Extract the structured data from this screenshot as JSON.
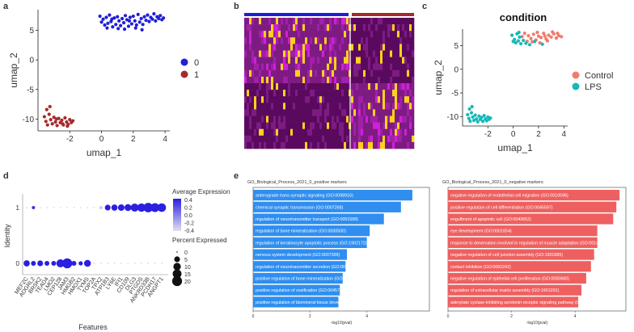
{
  "panels": {
    "a": "a",
    "b": "b",
    "c": "c",
    "d": "d",
    "e": "e"
  },
  "chart_data": [
    {
      "id": "a",
      "type": "scatter",
      "xlabel": "umap_1",
      "ylabel": "umap_2",
      "xlim": [
        -4,
        4.3
      ],
      "ylim": [
        -12,
        8.5
      ],
      "xticks": [
        -2,
        0,
        2,
        4
      ],
      "yticks": [
        -10,
        -5,
        0,
        5
      ],
      "legend": [
        "0",
        "1"
      ],
      "colors": [
        "#1f1fd6",
        "#a62a2a"
      ],
      "series": [
        {
          "name": "0",
          "points": [
            [
              -0.1,
              7.4
            ],
            [
              0.1,
              6.9
            ],
            [
              0.2,
              5.9
            ],
            [
              0.3,
              7.2
            ],
            [
              0.4,
              6.2
            ],
            [
              0.5,
              7.6
            ],
            [
              0.6,
              6.5
            ],
            [
              0.7,
              5.6
            ],
            [
              0.8,
              7.1
            ],
            [
              0.9,
              6.0
            ],
            [
              1.0,
              7.3
            ],
            [
              1.1,
              6.6
            ],
            [
              1.2,
              5.8
            ],
            [
              1.3,
              7.0
            ],
            [
              1.4,
              6.3
            ],
            [
              1.5,
              7.5
            ],
            [
              1.6,
              6.8
            ],
            [
              1.7,
              5.7
            ],
            [
              1.8,
              7.2
            ],
            [
              1.9,
              6.1
            ],
            [
              2.0,
              7.4
            ],
            [
              2.1,
              6.6
            ],
            [
              2.2,
              5.9
            ],
            [
              2.3,
              7.7
            ],
            [
              2.4,
              6.4
            ],
            [
              2.5,
              7.0
            ],
            [
              2.6,
              6.0
            ],
            [
              2.7,
              7.3
            ],
            [
              2.8,
              6.7
            ],
            [
              2.9,
              7.6
            ],
            [
              3.0,
              6.5
            ],
            [
              3.1,
              7.2
            ],
            [
              3.2,
              6.9
            ],
            [
              3.3,
              7.8
            ],
            [
              3.4,
              6.6
            ],
            [
              3.5,
              7.3
            ],
            [
              3.6,
              7.0
            ],
            [
              3.7,
              7.5
            ],
            [
              3.8,
              6.8
            ],
            [
              3.9,
              7.1
            ],
            [
              0.0,
              6.4
            ],
            [
              0.35,
              5.4
            ],
            [
              1.05,
              5.3
            ],
            [
              1.45,
              5.2
            ],
            [
              2.15,
              5.4
            ],
            [
              2.55,
              5.1
            ],
            [
              0.65,
              6.9
            ],
            [
              1.75,
              6.6
            ]
          ]
        },
        {
          "name": "1",
          "points": [
            [
              -3.6,
              -9.6
            ],
            [
              -3.5,
              -10.4
            ],
            [
              -3.4,
              -11.0
            ],
            [
              -3.3,
              -9.2
            ],
            [
              -3.2,
              -10.1
            ],
            [
              -3.1,
              -10.8
            ],
            [
              -3.0,
              -9.7
            ],
            [
              -2.9,
              -10.5
            ],
            [
              -2.8,
              -11.1
            ],
            [
              -2.7,
              -9.9
            ],
            [
              -2.6,
              -10.6
            ],
            [
              -2.5,
              -10.2
            ],
            [
              -2.4,
              -11.0
            ],
            [
              -2.3,
              -9.8
            ],
            [
              -2.2,
              -10.5
            ],
            [
              -2.1,
              -10.9
            ],
            [
              -2.0,
              -10.1
            ],
            [
              -1.9,
              -10.6
            ],
            [
              -1.8,
              -10.3
            ],
            [
              -3.45,
              -8.4
            ],
            [
              -3.25,
              -7.9
            ],
            [
              -2.85,
              -10.0
            ],
            [
              -2.45,
              -10.8
            ],
            [
              -2.15,
              -11.2
            ]
          ]
        }
      ]
    },
    {
      "id": "b",
      "type": "heatmap",
      "groups": [
        {
          "name": "0",
          "color": "#1f1fd6"
        },
        {
          "name": "1",
          "color": "#a62a2a"
        }
      ],
      "colors": [
        "#5a0a5e",
        "#7e1b83",
        "#a020a8",
        "#d11fd9",
        "#ffd21a"
      ]
    },
    {
      "id": "c",
      "type": "scatter",
      "title": "condition",
      "xlabel": "umap_1",
      "ylabel": "umap_2",
      "xlim": [
        -4,
        4.3
      ],
      "ylim": [
        -12,
        8.5
      ],
      "xticks": [
        -2,
        0,
        2,
        4
      ],
      "yticks": [
        -10,
        -5,
        0,
        5
      ],
      "legend": [
        "Control",
        "LPS"
      ],
      "colors": [
        "#f07c6c",
        "#17b8b8"
      ],
      "series": [
        {
          "name": "Control",
          "points": [
            [
              1.2,
              7.1
            ],
            [
              1.4,
              6.5
            ],
            [
              1.6,
              7.4
            ],
            [
              1.8,
              6.2
            ],
            [
              2.0,
              7.0
            ],
            [
              2.2,
              6.7
            ],
            [
              2.4,
              7.6
            ],
            [
              2.6,
              6.4
            ],
            [
              2.8,
              7.2
            ],
            [
              3.0,
              6.8
            ],
            [
              3.2,
              7.5
            ],
            [
              3.4,
              6.6
            ],
            [
              3.6,
              7.1
            ],
            [
              3.8,
              6.9
            ],
            [
              1.5,
              5.8
            ],
            [
              2.1,
              5.6
            ],
            [
              2.7,
              6.0
            ],
            [
              3.1,
              7.9
            ],
            [
              0.7,
              6.9
            ],
            [
              0.9,
              7.6
            ],
            [
              1.1,
              5.9
            ],
            [
              2.5,
              7.0
            ],
            [
              1.9,
              7.8
            ],
            [
              3.5,
              7.6
            ]
          ]
        },
        {
          "name": "LPS",
          "points": [
            [
              -0.1,
              7.2
            ],
            [
              0.1,
              6.3
            ],
            [
              0.2,
              5.6
            ],
            [
              0.3,
              7.5
            ],
            [
              0.4,
              6.0
            ],
            [
              0.5,
              6.8
            ],
            [
              0.6,
              5.4
            ],
            [
              0.8,
              6.1
            ],
            [
              1.0,
              5.5
            ],
            [
              1.3,
              5.2
            ],
            [
              1.7,
              5.9
            ],
            [
              2.3,
              5.3
            ],
            [
              0.0,
              5.9
            ],
            [
              0.45,
              7.8
            ],
            [
              -3.6,
              -9.6
            ],
            [
              -3.5,
              -10.4
            ],
            [
              -3.4,
              -11.0
            ],
            [
              -3.3,
              -9.2
            ],
            [
              -3.2,
              -10.1
            ],
            [
              -3.1,
              -10.8
            ],
            [
              -3.0,
              -9.7
            ],
            [
              -2.9,
              -10.5
            ],
            [
              -2.8,
              -11.1
            ],
            [
              -2.7,
              -9.9
            ],
            [
              -2.6,
              -10.6
            ],
            [
              -2.5,
              -10.2
            ],
            [
              -2.4,
              -11.0
            ],
            [
              -2.3,
              -9.8
            ],
            [
              -2.2,
              -10.5
            ],
            [
              -2.1,
              -10.9
            ],
            [
              -2.0,
              -10.1
            ],
            [
              -1.9,
              -10.6
            ],
            [
              -1.8,
              -10.3
            ],
            [
              -3.45,
              -8.4
            ],
            [
              -3.25,
              -7.9
            ]
          ]
        }
      ]
    },
    {
      "id": "d",
      "type": "scatter",
      "subtype": "dotplot",
      "xlabel": "Features",
      "ylabel": "Identity",
      "identities": [
        "0",
        "1"
      ],
      "features": [
        "MEF2C",
        "ADGRL2",
        "BRSK2",
        "TEAD4",
        "LMO2",
        "CEP128",
        "JAM3",
        "HMGB2",
        "HMOX1",
        "TYMS",
        "TOP2A",
        "TPX2",
        "ATP1B3",
        "LY6E",
        "IFI1",
        "CD109",
        "DLG3",
        "PTGDS",
        "ANKRD33B",
        "PCDH17",
        "ANGPT1"
      ],
      "expr_row1": [
        -0.4,
        0.4,
        -0.4,
        -0.4,
        -0.4,
        -0.4,
        -0.4,
        -0.4,
        -0.4,
        -0.4,
        -0.4,
        -0.3,
        0.5,
        0.5,
        0.5,
        0.5,
        0.5,
        0.5,
        0.5,
        0.5,
        0.5
      ],
      "pct_row1": [
        0.5,
        0.8,
        0.3,
        0.3,
        0.3,
        0.3,
        0.3,
        0.3,
        0.3,
        0.3,
        0.5,
        0.8,
        5,
        6,
        7,
        8,
        12,
        13,
        18,
        15,
        14
      ],
      "expr_row0": [
        0.5,
        0.5,
        0.5,
        0.5,
        0.5,
        0.5,
        0.5,
        0.5,
        0.5,
        0.5,
        -0.4,
        -0.4,
        -0.4,
        -0.4,
        -0.4,
        -0.4,
        -0.4,
        -0.4,
        -0.4,
        -0.4,
        -0.4
      ],
      "pct_row0": [
        6,
        3,
        5,
        3,
        3,
        12,
        20,
        3,
        2,
        8,
        0.3,
        0.3,
        0.3,
        0.3,
        0.3,
        0.3,
        0.3,
        0.3,
        0.3,
        0.3,
        0.3
      ],
      "legend_expr_title": "Average Expression",
      "legend_expr_ticks": [
        "0.4",
        "0.2",
        "0.0",
        "-0.2",
        "-0.4"
      ],
      "legend_pct_title": "Percent Expressed",
      "legend_pct_values": [
        "0",
        "5",
        "10",
        "15",
        "20"
      ],
      "colors": [
        "#e0e0f0",
        "#2b1fe0"
      ]
    },
    {
      "id": "e1",
      "type": "bar",
      "orientation": "horizontal",
      "title": "GO_Biological_Process_2021_0_positive markers",
      "xlabel": "-log10(pval)",
      "xticks": [
        "0",
        "2",
        "4"
      ],
      "xlim": [
        0,
        6.2
      ],
      "color": "#2f8ef0",
      "categories": [
        "anterograde trans-synaptic signaling (GO:0098916)",
        "chemical synaptic transmission (GO:0007268)",
        "regulation of neurotransmitter transport (GO:0051588)",
        "regulation of bone mineralization (GO:0030500)",
        "regulation of keratinocyte apoptotic process (GO:1902172)",
        "nervous system development (GO:0007399)",
        "regulation of neurotransmitter secretion (GO:0046928)",
        "positive regulation of bone mineralization (GO:0030501)",
        "positive regulation of ossification (GO:0045778)",
        "positive regulation of biomineral tissue development (GO:0070169)"
      ],
      "values": [
        5.6,
        5.2,
        4.6,
        4.1,
        4.0,
        3.3,
        3.25,
        3.15,
        3.05,
        3.0
      ]
    },
    {
      "id": "e2",
      "type": "bar",
      "orientation": "horizontal",
      "title": "GO_Biological_Process_2021_0_negative markers",
      "xlabel": "-log10(pval)",
      "xticks": [
        "0",
        "2",
        "4"
      ],
      "xlim": [
        0,
        5.6
      ],
      "color": "#ee6060",
      "categories": [
        "negative regulation of endothelial cell migration (GO:0010596)",
        "positive regulation of cell differentiation (GO:0045597)",
        "engulfment of apoptotic cell (GO:0043652)",
        "eye development (GO:0001654)",
        "response to denervation involved in regulation of muscle adaptation (GO:0014894)",
        "negative regulation of cell junction assembly (GO:1901889)",
        "contact inhibition (GO:0060242)",
        "negative regulation of epithelial cell proliferation (GO:0050680)",
        "regulation of extracellular matrix assembly (GO:1901201)",
        "adenylate cyclase-inhibiting serotonin receptor signaling pathway (GO:0007198)"
      ],
      "values": [
        5.4,
        5.3,
        5.2,
        4.7,
        4.7,
        4.6,
        4.5,
        4.35,
        4.2,
        4.1
      ]
    }
  ]
}
